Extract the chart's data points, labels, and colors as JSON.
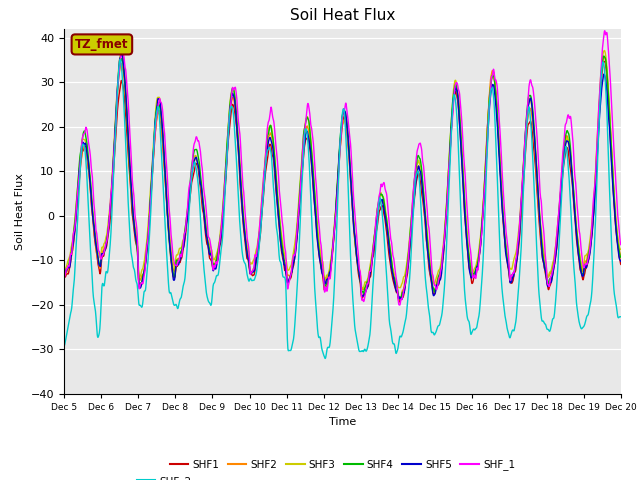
{
  "title": "Soil Heat Flux",
  "xlabel": "Time",
  "ylabel": "Soil Heat Flux",
  "ylim": [
    -40,
    42
  ],
  "xlim": [
    0,
    15
  ],
  "series_colors": {
    "SHF1": "#cc0000",
    "SHF2": "#ff8800",
    "SHF3": "#cccc00",
    "SHF4": "#00bb00",
    "SHF5": "#0000cc",
    "SHF_1": "#ff00ff",
    "SHF_2": "#00cccc"
  },
  "xtick_labels": [
    "Dec 5",
    "Dec 6",
    "Dec 7",
    "Dec 8",
    "Dec 9",
    "Dec 10",
    "Dec 11",
    "Dec 12",
    "Dec 13",
    "Dec 14",
    "Dec 15",
    "Dec 16",
    "Dec 17",
    "Dec 18",
    "Dec 19",
    "Dec 20"
  ],
  "ytick_values": [
    -40,
    -30,
    -20,
    -10,
    0,
    10,
    20,
    30,
    40
  ],
  "annotation_text": "TZ_fmet",
  "annotation_bg": "#cccc00",
  "annotation_border": "#880000",
  "bg_color": "#e8e8e8",
  "linewidth": 1.0,
  "legend_ncol_row1": 6
}
